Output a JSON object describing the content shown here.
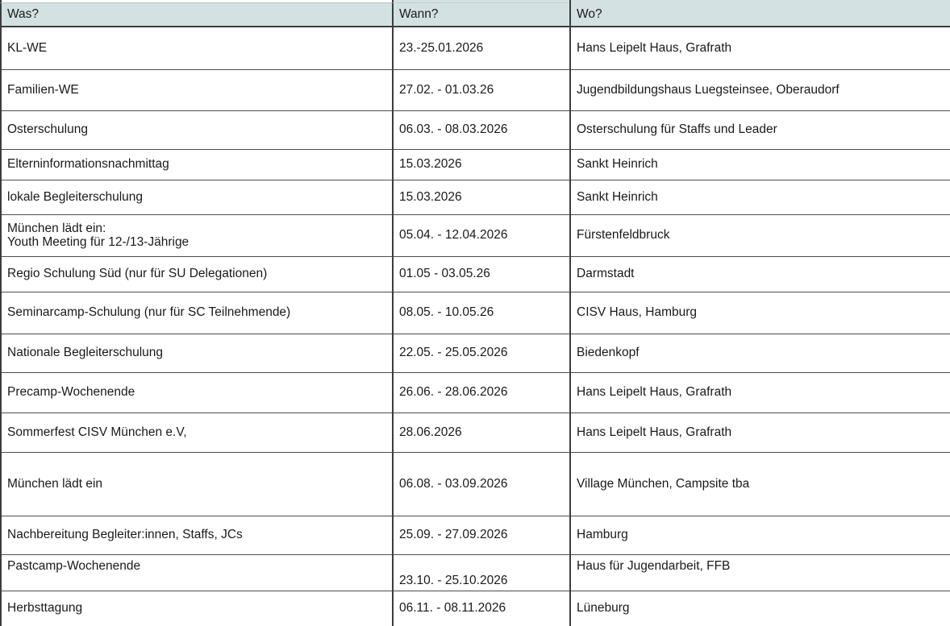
{
  "colors": {
    "header_bg": "#d4e1e3",
    "outer_border": "#3d3d3d",
    "row_border": "#4d4d4d",
    "text": "#1a1a1a"
  },
  "table": {
    "columns": [
      {
        "label": "Was?"
      },
      {
        "label": "Wann?"
      },
      {
        "label": "Wo?"
      }
    ],
    "rows": [
      {
        "was": "KL-WE",
        "wann": "23.-25.01.2026",
        "wo": "Hans Leipelt Haus, Grafrath"
      },
      {
        "was": "Familien-WE",
        "wann": "27.02. - 01.03.26",
        "wo": "Jugendbildungshaus Luegsteinsee, Oberaudorf"
      },
      {
        "was": "Osterschulung",
        "wann": "06.03. - 08.03.2026",
        "wo": "Osterschulung für Staffs und Leader"
      },
      {
        "was": "Elterninformationsnachmittag",
        "wann": "15.03.2026",
        "wo": "Sankt Heinrich"
      },
      {
        "was": "lokale Begleiterschulung",
        "wann": "15.03.2026",
        "wo": "Sankt Heinrich"
      },
      {
        "was": "München lädt ein:\nYouth Meeting für 12-/13-Jährige",
        "wann": "05.04. - 12.04.2026",
        "wo": "Fürstenfeldbruck"
      },
      {
        "was": "Regio Schulung Süd (nur für SU Delegationen)",
        "wann": "01.05 - 03.05.26",
        "wo": "Darmstadt"
      },
      {
        "was": "Seminarcamp-Schulung (nur für SC Teilnehmende)",
        "wann": "08.05. - 10.05.26",
        "wo": "CISV Haus, Hamburg"
      },
      {
        "was": "Nationale Begleiterschulung",
        "wann": "22.05. - 25.05.2026",
        "wo": "Biedenkopf"
      },
      {
        "was": "Precamp-Wochenende",
        "wann": "26.06. - 28.06.2026",
        "wo": "Hans Leipelt Haus, Grafrath"
      },
      {
        "was": "Sommerfest CISV München e.V,",
        "wann": "28.06.2026",
        "wo": "Hans Leipelt Haus, Grafrath"
      },
      {
        "was": "München lädt ein",
        "wann": "06.08. - 03.09.2026",
        "wo": "Village München, Campsite tba"
      },
      {
        "was": "Nachbereitung Begleiter:innen, Staffs, JCs",
        "wann": "25.09. - 27.09.2026",
        "wo": "Hamburg"
      },
      {
        "was": "Pastcamp-Wochenende",
        "wann": "23.10. - 25.10.2026",
        "wo": "Haus für Jugendarbeit, FFB"
      },
      {
        "was": "Herbsttagung",
        "wann": "06.11. - 08.11.2026",
        "wo": "Lüneburg"
      }
    ]
  }
}
